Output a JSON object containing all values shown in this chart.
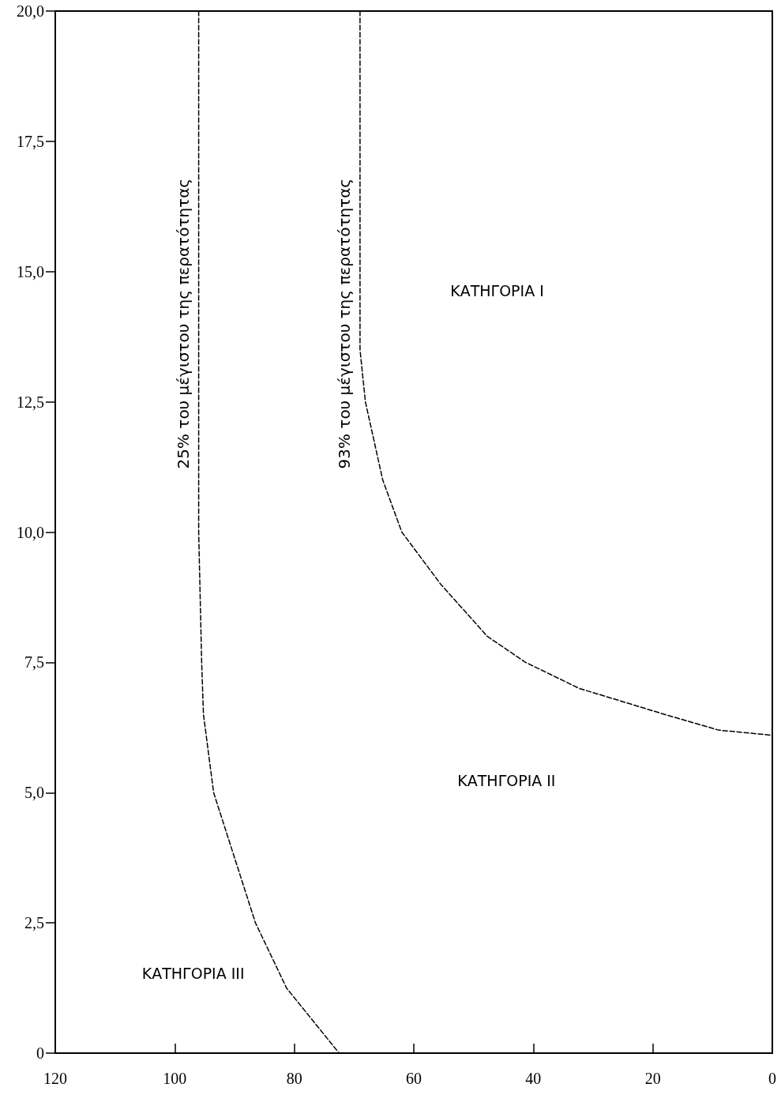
{
  "chart_data": {
    "type": "line",
    "series": [
      {
        "name": "25% του μέγιστου της περατότητας",
        "color": "#000000",
        "x": [
          96,
          96,
          96,
          95.5,
          95.2,
          93.5,
          86.5,
          81.3,
          72.5
        ],
        "values": [
          20,
          14,
          10,
          7.5,
          6.5,
          5,
          2.5,
          1.25,
          0
        ]
      },
      {
        "name": "93% του μέγιστου της περατότητας",
        "color": "#000000",
        "x": [
          69,
          69,
          69,
          68.1,
          65.2,
          62,
          55.5,
          47.7,
          41.3,
          32.3,
          18,
          9,
          0
        ],
        "values": [
          20,
          14,
          13.5,
          12.5,
          11,
          10,
          9,
          8,
          7.5,
          7,
          6.5,
          6.2,
          6.1
        ]
      }
    ],
    "xlim": [
      120,
      0
    ],
    "xticks": [
      120,
      100,
      80,
      60,
      40,
      20,
      0
    ],
    "ylim": [
      0,
      20
    ],
    "yticks": [
      0,
      {
        "value": 2.5,
        "label": "2,5"
      },
      {
        "value": 5,
        "label": "5,0"
      },
      {
        "value": 7.5,
        "label": "7,5"
      },
      {
        "value": 10,
        "label": "10,0"
      },
      {
        "value": 12.5,
        "label": "12,5"
      },
      {
        "value": 15,
        "label": "15,0"
      },
      {
        "value": 17.5,
        "label": "17,5"
      },
      {
        "value": 20,
        "label": "20,0"
      }
    ],
    "annotations": [
      "ΚΑΤΗΓΟΡΙΑ Ι",
      "ΚΑΤΗΓΟΡΙΑ ΙΙ",
      "ΚΑΤΗΓΟΡΙΑ ΙΙΙ"
    ],
    "grid": false,
    "legend": false,
    "marker": "none",
    "line_style": "dashed"
  }
}
